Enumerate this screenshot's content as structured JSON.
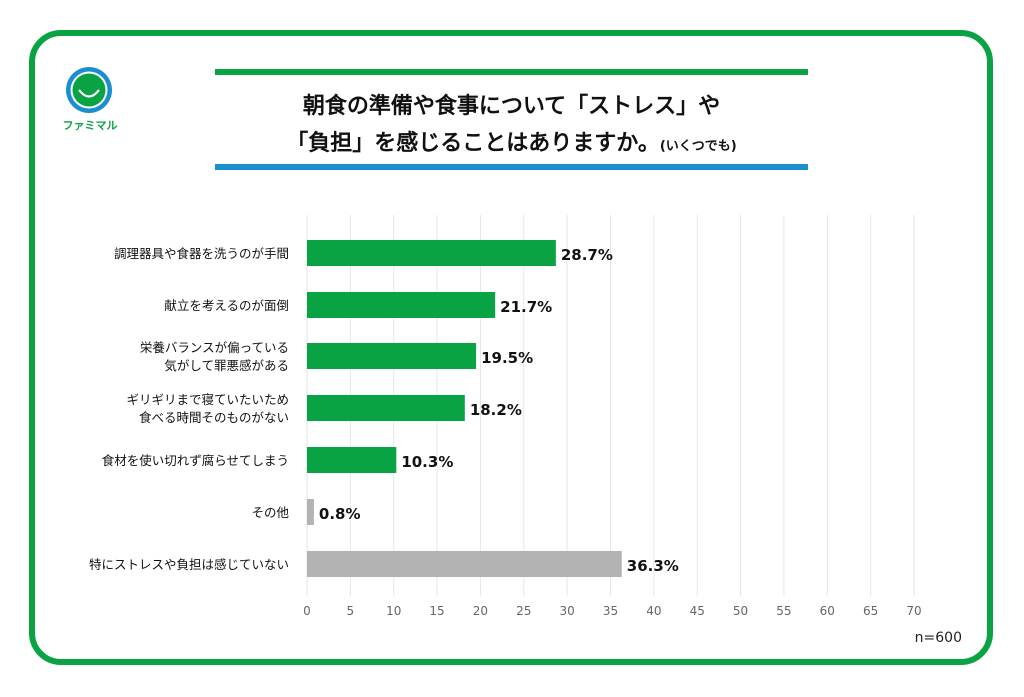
{
  "logo": {
    "text": "ファミマル",
    "colors": {
      "ring": "#1a8fd0",
      "face": "#0aa344"
    }
  },
  "title": {
    "line1": "朝食の準備や食事について「ストレス」や",
    "line2": "「負担」を感じることはありますか。",
    "note": "(いくつでも)"
  },
  "sample": "n=600",
  "chart_data": {
    "type": "bar",
    "orientation": "horizontal",
    "categories": [
      "調理器具や食器を洗うのが手間",
      "献立を考えるのが面倒",
      "栄養バランスが偏っている\n気がして罪悪感がある",
      "ギリギリまで寝ていたいため\n食べる時間そのものがない",
      "食材を使い切れず腐らせてしまう",
      "その他",
      "特にストレスや負担は感じていない"
    ],
    "values": [
      28.7,
      21.7,
      19.5,
      18.2,
      10.3,
      0.8,
      36.3
    ],
    "data_labels": [
      "28.7%",
      "21.7%",
      "19.5%",
      "18.2%",
      "10.3%",
      "0.8%",
      "36.3%"
    ],
    "colors": [
      "#0aa344",
      "#0aa344",
      "#0aa344",
      "#0aa344",
      "#0aa344",
      "#b3b3b3",
      "#b3b3b3"
    ],
    "xlim": [
      0,
      70
    ],
    "xticks": [
      "0",
      "5",
      "10",
      "15",
      "20",
      "25",
      "30",
      "35",
      "40",
      "45",
      "50",
      "55",
      "60",
      "65",
      "70"
    ],
    "grid": true
  }
}
